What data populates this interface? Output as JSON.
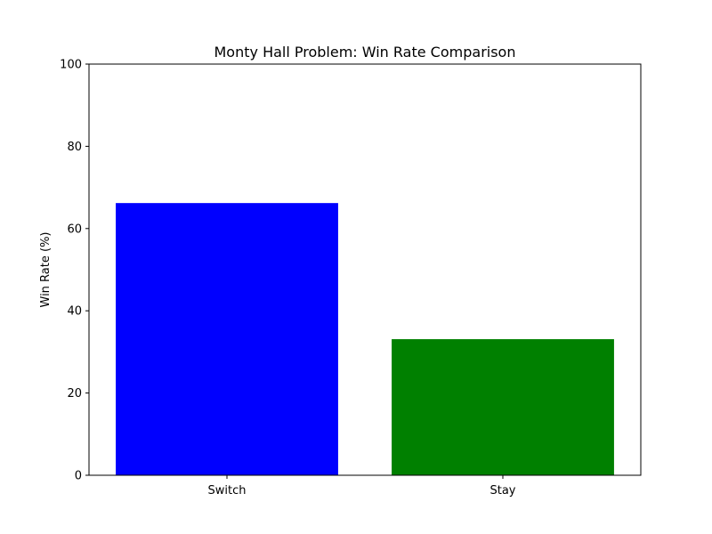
{
  "chart_data": {
    "type": "bar",
    "title": "Monty Hall Problem: Win Rate Comparison",
    "xlabel": "",
    "ylabel": "Win Rate (%)",
    "categories": [
      "Switch",
      "Stay"
    ],
    "values": [
      66.2,
      33.1
    ],
    "colors": [
      "#0000ff",
      "#008000"
    ],
    "ylim": [
      0,
      100
    ],
    "yticks": [
      0,
      20,
      40,
      60,
      80,
      100
    ],
    "ytick_labels": [
      "0",
      "20",
      "40",
      "60",
      "80",
      "100"
    ],
    "grid": false
  }
}
